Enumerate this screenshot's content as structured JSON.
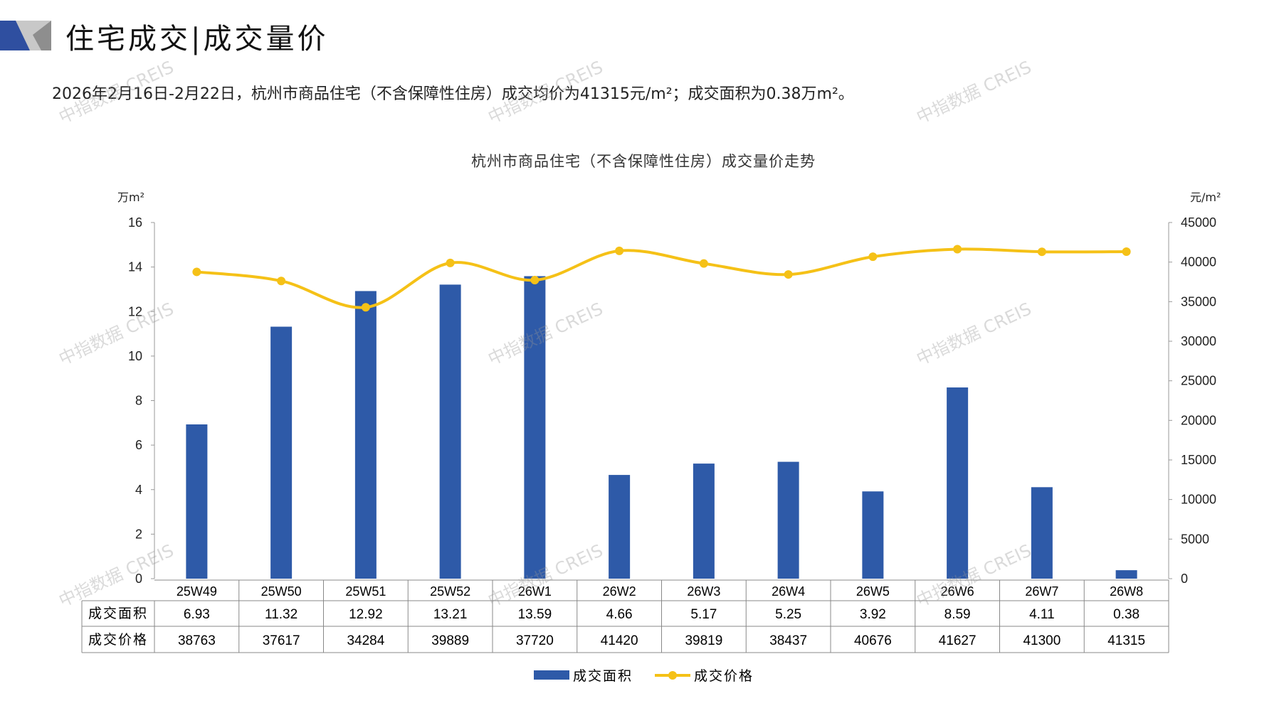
{
  "header": {
    "title": "住宅成交|成交量价"
  },
  "summary": "2026年2月16日-2月22日，杭州市商品住宅（不含保障性住房）成交均价为41315元/m²；成交面积为0.38万m²。",
  "watermark": "中指数据 CREIS",
  "colors": {
    "bar": "#2E5AA8",
    "line": "#F5C117",
    "logo_blue": "#2F4FA0",
    "logo_grey": "#9A9A9A"
  },
  "chart_data": {
    "type": "bar+line",
    "title": "杭州市商品住宅（不含保障性住房）成交量价走势",
    "ylabel_left": "万m²",
    "ylabel_right": "元/m²",
    "ylim_left": [
      0,
      16
    ],
    "yticks_left": [
      0,
      2,
      4,
      6,
      8,
      10,
      12,
      14,
      16
    ],
    "ylim_right": [
      0,
      45000
    ],
    "yticks_right": [
      0,
      5000,
      10000,
      15000,
      20000,
      25000,
      30000,
      35000,
      40000,
      45000
    ],
    "categories": [
      "25W49",
      "25W50",
      "25W51",
      "25W52",
      "26W1",
      "26W2",
      "26W3",
      "26W4",
      "26W5",
      "26W6",
      "26W7",
      "26W8"
    ],
    "series": [
      {
        "name": "成交面积",
        "type": "bar",
        "axis": "left",
        "values": [
          6.93,
          11.32,
          12.92,
          13.21,
          13.59,
          4.66,
          5.17,
          5.25,
          3.92,
          8.59,
          4.11,
          0.38
        ],
        "labels": [
          "6.93",
          "11.32",
          "12.92",
          "13.21",
          "13.59",
          "4.66",
          "5.17",
          "5.25",
          "3.92",
          "8.59",
          "4.11",
          "0.38"
        ]
      },
      {
        "name": "成交价格",
        "type": "line",
        "axis": "right",
        "values": [
          38763,
          37617,
          34284,
          39889,
          37720,
          41420,
          39819,
          38437,
          40676,
          41627,
          41300,
          41315
        ],
        "labels": [
          "38763",
          "37617",
          "34284",
          "39889",
          "37720",
          "41420",
          "39819",
          "38437",
          "40676",
          "41627",
          "41300",
          "41315"
        ]
      }
    ],
    "legend": "bottom-center",
    "data_table": true
  }
}
